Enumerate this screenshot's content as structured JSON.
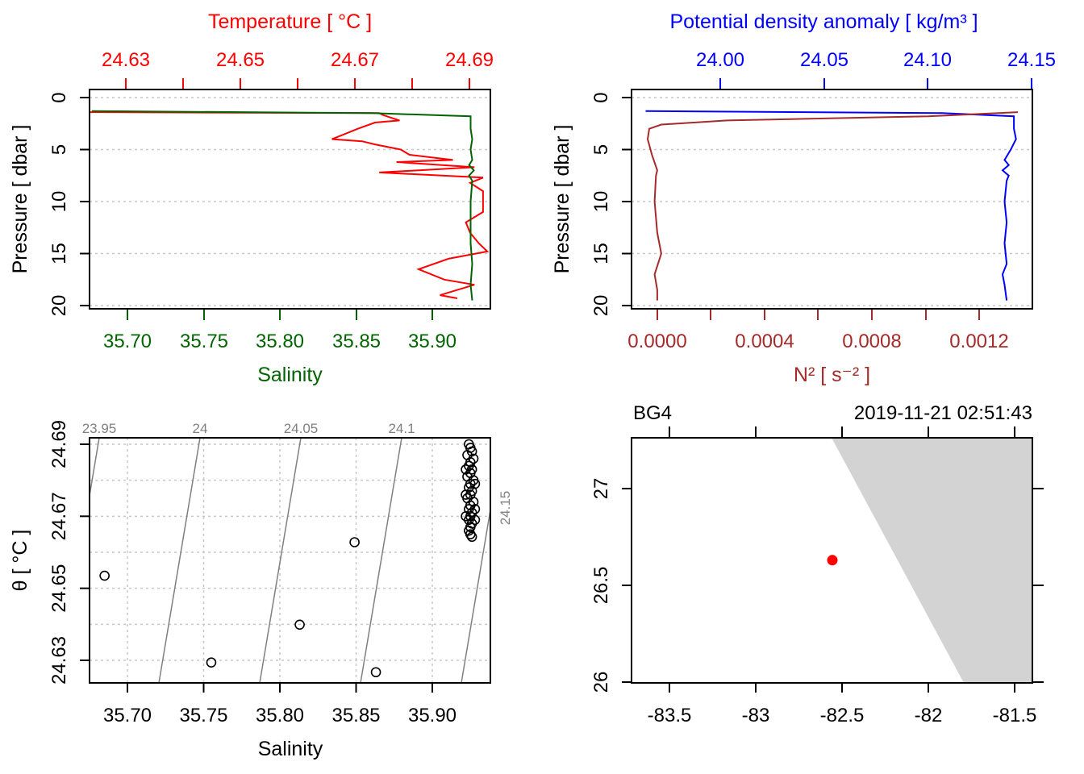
{
  "chart_data": [
    {
      "type": "line",
      "panel": "profile-temperature-salinity",
      "top_axis": {
        "label": "Temperature [ °C ]",
        "ticks": [
          "24.63",
          "24.65",
          "24.67",
          "24.69"
        ],
        "color": "#ff0000",
        "range": [
          24.6263,
          24.6916
        ]
      },
      "bottom_axis": {
        "label": "Salinity",
        "ticks": [
          "35.70",
          "35.75",
          "35.80",
          "35.85",
          "35.90"
        ],
        "color": "#006400",
        "range": [
          35.6835,
          35.9375
        ]
      },
      "ylabel": "Pressure [ dbar ]",
      "yticks": [
        "0",
        "5",
        "10",
        "15",
        "20"
      ],
      "ylim": [
        20.4,
        -0.6
      ],
      "grid": true,
      "series": [
        {
          "variable": "temperature",
          "color": "#ff0000",
          "pressure": [
            1.4,
            1.5,
            1.7,
            2.2,
            2.4,
            3.0,
            3.5,
            4.0,
            4.2,
            4.5,
            5.0,
            5.5,
            6.0,
            6.2,
            6.7,
            7.2,
            7.7,
            8.2,
            9.0,
            11.0,
            12.0,
            13.0,
            14.0,
            14.8,
            15.5,
            16.5,
            17.5,
            18.0,
            19.0,
            19.3
          ],
          "values": [
            24.6263,
            24.6735,
            24.6742,
            24.6768,
            24.6728,
            24.67,
            24.6679,
            24.6658,
            24.6707,
            24.6728,
            24.677,
            24.6784,
            24.6855,
            24.6763,
            24.689,
            24.6735,
            24.6904,
            24.6883,
            24.6904,
            24.6904,
            24.6876,
            24.6883,
            24.6897,
            24.6911,
            24.6848,
            24.6799,
            24.6841,
            24.689,
            24.6834,
            24.6862
          ]
        },
        {
          "variable": "salinity",
          "color": "#006400",
          "pressure": [
            1.3,
            1.5,
            1.8,
            3,
            4,
            5,
            6,
            6.5,
            7,
            7.5,
            8,
            10,
            12,
            14,
            16,
            18,
            19.5
          ],
          "values": [
            35.685,
            35.862,
            35.925,
            35.925,
            35.926,
            35.925,
            35.926,
            35.924,
            35.927,
            35.924,
            35.926,
            35.925,
            35.925,
            35.925,
            35.926,
            35.925,
            35.926
          ]
        }
      ]
    },
    {
      "type": "line",
      "panel": "profile-density-n2",
      "top_axis": {
        "label": "Potential density anomaly [ kg/m³ ]",
        "ticks": [
          "24.00",
          "24.05",
          "24.10",
          "24.15"
        ],
        "color": "#0000ff",
        "range": [
          23.9572,
          24.1504
        ]
      },
      "bottom_axis": {
        "label": "N² [ s⁻² ]",
        "ticks": [
          "0.0000",
          "0.0004",
          "0.0008",
          "0.0012"
        ],
        "color": "#a52a2a",
        "range": [
          -9.6e-05,
          0.001398
        ]
      },
      "ylabel": "Pressure [ dbar ]",
      "yticks": [
        "0",
        "5",
        "10",
        "15",
        "20"
      ],
      "ylim": [
        20.4,
        -0.6
      ],
      "grid": true,
      "series": [
        {
          "variable": "sigma-theta",
          "color": "#0000ff",
          "pressure": [
            1.3,
            1.5,
            1.8,
            3,
            4,
            5,
            6,
            6.5,
            7,
            7.5,
            8,
            10,
            12,
            14,
            16,
            17,
            18,
            19.5
          ],
          "values": [
            23.964,
            24.107,
            24.1415,
            24.1415,
            24.1425,
            24.14,
            24.137,
            24.139,
            24.136,
            24.139,
            24.138,
            24.137,
            24.138,
            24.137,
            24.138,
            24.136,
            24.137,
            24.138
          ]
        },
        {
          "variable": "N2",
          "color": "#a52a2a",
          "pressure": [
            1.4,
            1.8,
            2.2,
            2.6,
            3.0,
            4.0,
            5.5,
            7.0,
            7.5,
            10.0,
            13.0,
            15.0,
            17.0,
            18.5,
            19.5
          ],
          "values": [
            0.001344,
            0.00101,
            0.00026,
            1.5e-05,
            -3e-05,
            -3.6e-05,
            -2e-05,
            0.0,
            -5e-06,
            -1e-05,
            0.0,
            1.5e-05,
            -1e-05,
            0.0,
            0.0
          ]
        }
      ]
    },
    {
      "type": "scatter",
      "panel": "ts-diagram",
      "xlabel": "Salinity",
      "ylabel": "θ [ °C ]",
      "xticks": [
        "35.70",
        "35.75",
        "35.80",
        "35.85",
        "35.90"
      ],
      "yticks": [
        "24.63",
        "24.65",
        "24.67",
        "24.69"
      ],
      "xlim": [
        35.6835,
        35.9375
      ],
      "ylim": [
        24.6238,
        24.6918
      ],
      "grid": true,
      "isopycnals": [
        "23.95",
        "24",
        "24.05",
        "24.1",
        "24.15"
      ],
      "isopycnal_color": "#808080",
      "points": [
        [
          35.685,
          24.6535
        ],
        [
          35.755,
          24.6294
        ],
        [
          35.813,
          24.6399
        ],
        [
          35.849,
          24.6628
        ],
        [
          35.863,
          24.6267
        ],
        [
          35.924,
          24.69
        ],
        [
          35.925,
          24.689
        ],
        [
          35.926,
          24.688
        ],
        [
          35.923,
          24.687
        ],
        [
          35.927,
          24.686
        ],
        [
          35.925,
          24.685
        ],
        [
          35.924,
          24.684
        ],
        [
          35.926,
          24.683
        ],
        [
          35.925,
          24.682
        ],
        [
          35.923,
          24.681
        ],
        [
          35.927,
          24.68
        ],
        [
          35.925,
          24.679
        ],
        [
          35.924,
          24.678
        ],
        [
          35.926,
          24.677
        ],
        [
          35.925,
          24.676
        ],
        [
          35.923,
          24.675
        ],
        [
          35.927,
          24.674
        ],
        [
          35.925,
          24.673
        ],
        [
          35.924,
          24.672
        ],
        [
          35.926,
          24.671
        ],
        [
          35.925,
          24.67
        ],
        [
          35.924,
          24.669
        ],
        [
          35.926,
          24.668
        ],
        [
          35.925,
          24.667
        ],
        [
          35.924,
          24.666
        ],
        [
          35.925,
          24.665
        ],
        [
          35.926,
          24.6643
        ],
        [
          35.922,
          24.683
        ],
        [
          35.928,
          24.679
        ],
        [
          35.922,
          24.676
        ],
        [
          35.928,
          24.672
        ],
        [
          35.922,
          24.67
        ],
        [
          35.928,
          24.669
        ]
      ]
    },
    {
      "type": "map",
      "panel": "station-map",
      "station": "BG4",
      "time": "2019-11-21 02:51:43",
      "xticks": [
        "-83.5",
        "-83",
        "-82.5",
        "-82",
        "-81.5"
      ],
      "yticks": [
        "26",
        "26.5",
        "27"
      ],
      "xlim": [
        -83.72,
        -81.4
      ],
      "ylim": [
        25.996,
        27.263
      ],
      "land_color": "#d3d3d3",
      "station_color": "#ff0000",
      "station_lon": -82.556,
      "station_lat": 26.63
    }
  ]
}
